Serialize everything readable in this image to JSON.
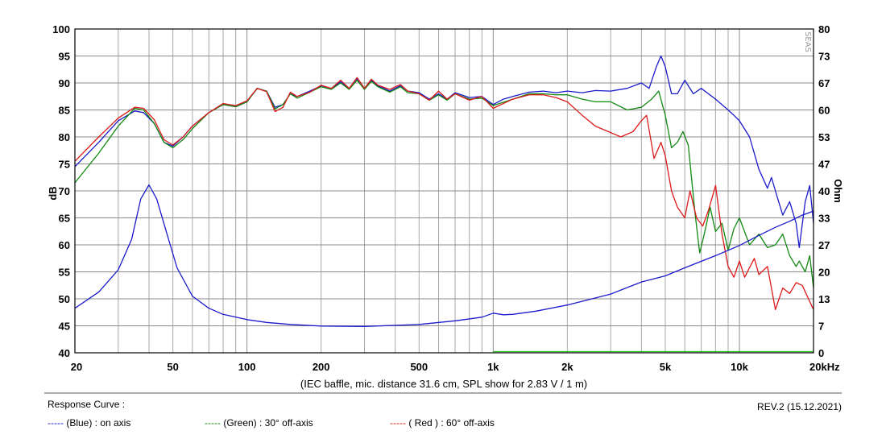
{
  "chart_data": {
    "type": "line",
    "xscale": "log",
    "xlim": [
      20,
      20000
    ],
    "ylim": [
      40,
      100
    ],
    "y2lim": [
      0,
      80
    ],
    "grid": true,
    "ylabel": "dB",
    "y2label": "Ohm",
    "xlabel_note": "(IEC baffle, mic. distance 31.6 cm, SPL show for 2.83 V / 1 m)",
    "x_ticks": [
      {
        "v": 20,
        "label": "20"
      },
      {
        "v": 50,
        "label": "50"
      },
      {
        "v": 100,
        "label": "100"
      },
      {
        "v": 200,
        "label": "200"
      },
      {
        "v": 500,
        "label": "500"
      },
      {
        "v": 1000,
        "label": "1k"
      },
      {
        "v": 2000,
        "label": "2k"
      },
      {
        "v": 5000,
        "label": "5k"
      },
      {
        "v": 10000,
        "label": "10k"
      },
      {
        "v": 20000,
        "label": "20kHz"
      }
    ],
    "y_ticks": [
      "40",
      "45",
      "50",
      "55",
      "60",
      "65",
      "70",
      "75",
      "80",
      "85",
      "90",
      "95",
      "100"
    ],
    "y2_ticks": [
      "0",
      "7",
      "13",
      "20",
      "27",
      "33",
      "40",
      "47",
      "53",
      "60",
      "67",
      "73",
      "80"
    ],
    "watermark": "SEAS",
    "series": [
      {
        "key": "on_axis",
        "axis": "left",
        "color": "#1a1acc",
        "points": [
          [
            20,
            74.5
          ],
          [
            25,
            79
          ],
          [
            30,
            83
          ],
          [
            35,
            84.8
          ],
          [
            38,
            84.5
          ],
          [
            42,
            82.5
          ],
          [
            46,
            79
          ],
          [
            50,
            78.3
          ],
          [
            55,
            80
          ],
          [
            60,
            82
          ],
          [
            70,
            84.5
          ],
          [
            80,
            86
          ],
          [
            90,
            85.6
          ],
          [
            100,
            86.5
          ],
          [
            110,
            89
          ],
          [
            120,
            88.5
          ],
          [
            130,
            85.5
          ],
          [
            140,
            86
          ],
          [
            150,
            88
          ],
          [
            160,
            87.5
          ],
          [
            180,
            88.5
          ],
          [
            200,
            89.5
          ],
          [
            220,
            89
          ],
          [
            240,
            90.2
          ],
          [
            260,
            89
          ],
          [
            280,
            90.8
          ],
          [
            300,
            89
          ],
          [
            320,
            90.5
          ],
          [
            340,
            89.5
          ],
          [
            380,
            88.5
          ],
          [
            420,
            89.5
          ],
          [
            450,
            88.5
          ],
          [
            500,
            88.2
          ],
          [
            550,
            87
          ],
          [
            600,
            88
          ],
          [
            650,
            87
          ],
          [
            700,
            88.2
          ],
          [
            800,
            87.3
          ],
          [
            900,
            87.5
          ],
          [
            1000,
            86
          ],
          [
            1100,
            87
          ],
          [
            1200,
            87.5
          ],
          [
            1400,
            88.3
          ],
          [
            1600,
            88.5
          ],
          [
            1800,
            88.2
          ],
          [
            2000,
            88.5
          ],
          [
            2300,
            88.2
          ],
          [
            2600,
            88.6
          ],
          [
            3000,
            88.5
          ],
          [
            3500,
            89
          ],
          [
            4000,
            90
          ],
          [
            4300,
            89
          ],
          [
            4600,
            93
          ],
          [
            4800,
            95
          ],
          [
            5000,
            93
          ],
          [
            5300,
            88
          ],
          [
            5600,
            88
          ],
          [
            6000,
            90.5
          ],
          [
            6500,
            88
          ],
          [
            7000,
            89
          ],
          [
            8000,
            87
          ],
          [
            9000,
            85
          ],
          [
            9500,
            84
          ],
          [
            10000,
            83
          ],
          [
            11000,
            80
          ],
          [
            12000,
            74
          ],
          [
            13000,
            70.5
          ],
          [
            13500,
            72.5
          ],
          [
            14000,
            70
          ],
          [
            15000,
            65.5
          ],
          [
            16000,
            68
          ],
          [
            17000,
            64
          ],
          [
            17500,
            59.5
          ],
          [
            18500,
            68
          ],
          [
            19300,
            71
          ],
          [
            20000,
            64
          ]
        ]
      },
      {
        "key": "off_30",
        "axis": "left",
        "color": "#138a13",
        "points": [
          [
            20,
            71.5
          ],
          [
            25,
            77
          ],
          [
            30,
            82
          ],
          [
            35,
            85.3
          ],
          [
            38,
            85
          ],
          [
            42,
            82.5
          ],
          [
            46,
            79
          ],
          [
            50,
            78
          ],
          [
            55,
            79.5
          ],
          [
            60,
            81.5
          ],
          [
            70,
            84.5
          ],
          [
            80,
            86
          ],
          [
            90,
            85.6
          ],
          [
            100,
            86.5
          ],
          [
            110,
            89
          ],
          [
            120,
            88.5
          ],
          [
            130,
            85.2
          ],
          [
            140,
            86
          ],
          [
            150,
            88
          ],
          [
            160,
            87.2
          ],
          [
            180,
            88.3
          ],
          [
            200,
            89.3
          ],
          [
            220,
            88.8
          ],
          [
            240,
            90
          ],
          [
            260,
            88.8
          ],
          [
            280,
            90.5
          ],
          [
            300,
            88.8
          ],
          [
            320,
            90.3
          ],
          [
            340,
            89.3
          ],
          [
            380,
            88.3
          ],
          [
            420,
            89.3
          ],
          [
            450,
            88.2
          ],
          [
            500,
            88
          ],
          [
            550,
            86.8
          ],
          [
            600,
            87.8
          ],
          [
            650,
            86.8
          ],
          [
            700,
            88
          ],
          [
            800,
            87
          ],
          [
            900,
            87.2
          ],
          [
            1000,
            85.8
          ],
          [
            1200,
            87
          ],
          [
            1400,
            88
          ],
          [
            1600,
            88
          ],
          [
            1800,
            87.8
          ],
          [
            2000,
            87.8
          ],
          [
            2300,
            87
          ],
          [
            2600,
            86.5
          ],
          [
            3000,
            86.5
          ],
          [
            3500,
            85
          ],
          [
            4000,
            85.5
          ],
          [
            4400,
            87
          ],
          [
            4700,
            88.5
          ],
          [
            5000,
            84
          ],
          [
            5300,
            78
          ],
          [
            5600,
            79
          ],
          [
            5900,
            81
          ],
          [
            6200,
            78.5
          ],
          [
            6600,
            66
          ],
          [
            6900,
            58.5
          ],
          [
            7200,
            62
          ],
          [
            7600,
            67
          ],
          [
            8000,
            62.5
          ],
          [
            8500,
            64
          ],
          [
            9000,
            59
          ],
          [
            9500,
            63
          ],
          [
            10000,
            65
          ],
          [
            11000,
            60
          ],
          [
            12000,
            62
          ],
          [
            13000,
            59.5
          ],
          [
            14000,
            60
          ],
          [
            15000,
            62
          ],
          [
            16000,
            58
          ],
          [
            17000,
            56
          ],
          [
            17500,
            57
          ],
          [
            18500,
            55
          ],
          [
            19300,
            58
          ],
          [
            20000,
            52
          ]
        ]
      },
      {
        "key": "off_60",
        "axis": "left",
        "color": "#dd1a1a",
        "points": [
          [
            20,
            75.5
          ],
          [
            25,
            80
          ],
          [
            30,
            83.5
          ],
          [
            35,
            85.5
          ],
          [
            38,
            85.3
          ],
          [
            42,
            83.2
          ],
          [
            46,
            79.5
          ],
          [
            50,
            78.5
          ],
          [
            55,
            80
          ],
          [
            60,
            82
          ],
          [
            70,
            84.5
          ],
          [
            80,
            86.2
          ],
          [
            90,
            85.8
          ],
          [
            100,
            86.7
          ],
          [
            110,
            89
          ],
          [
            120,
            88.4
          ],
          [
            130,
            84.7
          ],
          [
            140,
            85.5
          ],
          [
            150,
            88.3
          ],
          [
            160,
            87.5
          ],
          [
            180,
            88.3
          ],
          [
            200,
            89.6
          ],
          [
            220,
            89
          ],
          [
            240,
            90.5
          ],
          [
            260,
            89
          ],
          [
            280,
            91
          ],
          [
            300,
            89
          ],
          [
            320,
            90.7
          ],
          [
            340,
            89.6
          ],
          [
            380,
            88.8
          ],
          [
            420,
            89.7
          ],
          [
            450,
            88.5
          ],
          [
            500,
            88
          ],
          [
            550,
            86.8
          ],
          [
            600,
            88.5
          ],
          [
            650,
            87
          ],
          [
            700,
            88
          ],
          [
            800,
            86.8
          ],
          [
            900,
            87.5
          ],
          [
            1000,
            85.3
          ],
          [
            1200,
            87
          ],
          [
            1400,
            87.8
          ],
          [
            1600,
            87.8
          ],
          [
            1800,
            87.3
          ],
          [
            2000,
            86.5
          ],
          [
            2300,
            84
          ],
          [
            2600,
            82
          ],
          [
            3000,
            80.8
          ],
          [
            3300,
            80
          ],
          [
            3700,
            81
          ],
          [
            4000,
            83
          ],
          [
            4200,
            84
          ],
          [
            4500,
            76
          ],
          [
            4800,
            79
          ],
          [
            5000,
            76.5
          ],
          [
            5300,
            70
          ],
          [
            5600,
            67
          ],
          [
            6000,
            65
          ],
          [
            6300,
            70
          ],
          [
            6700,
            65
          ],
          [
            7100,
            63.5
          ],
          [
            7500,
            66.5
          ],
          [
            8000,
            71
          ],
          [
            8500,
            62
          ],
          [
            9000,
            56
          ],
          [
            9500,
            54
          ],
          [
            10000,
            57
          ],
          [
            10500,
            54
          ],
          [
            11500,
            57.5
          ],
          [
            12000,
            54.5
          ],
          [
            13000,
            56
          ],
          [
            14000,
            48
          ],
          [
            15000,
            52
          ],
          [
            16000,
            51
          ],
          [
            17000,
            53
          ],
          [
            18000,
            52.5
          ],
          [
            20000,
            48
          ]
        ]
      },
      {
        "key": "impedance",
        "axis": "right",
        "color": "#1a1acc",
        "points": [
          [
            20,
            11
          ],
          [
            25,
            15
          ],
          [
            30,
            20.5
          ],
          [
            34,
            28
          ],
          [
            37,
            38
          ],
          [
            40,
            41.5
          ],
          [
            43,
            38
          ],
          [
            47,
            30
          ],
          [
            52,
            21
          ],
          [
            60,
            14
          ],
          [
            70,
            11
          ],
          [
            80,
            9.5
          ],
          [
            100,
            8.2
          ],
          [
            120,
            7.5
          ],
          [
            150,
            7
          ],
          [
            200,
            6.6
          ],
          [
            300,
            6.5
          ],
          [
            500,
            7
          ],
          [
            700,
            7.9
          ],
          [
            900,
            8.8
          ],
          [
            1000,
            9.8
          ],
          [
            1100,
            9.4
          ],
          [
            1200,
            9.5
          ],
          [
            1500,
            10.3
          ],
          [
            2000,
            11.8
          ],
          [
            3000,
            14.5
          ],
          [
            4000,
            17.5
          ],
          [
            5000,
            19
          ],
          [
            6000,
            21
          ],
          [
            8000,
            24
          ],
          [
            10000,
            26.5
          ],
          [
            12000,
            29
          ],
          [
            14000,
            31
          ],
          [
            16000,
            32.5
          ],
          [
            18000,
            34
          ],
          [
            20000,
            35
          ]
        ]
      },
      {
        "key": "baseline",
        "axis": "right",
        "color": "#22c022",
        "points": [
          [
            1000,
            0.3
          ],
          [
            20000,
            0.3
          ]
        ]
      }
    ]
  },
  "footer": {
    "heading": "Response Curve :",
    "revision": "REV.2 (15.12.2021)",
    "legend": [
      {
        "dash": "-----",
        "text": " (Blue)  : on axis",
        "color": "#1a1acc"
      },
      {
        "dash": "-----",
        "text": " (Green) : 30° off-axis",
        "color": "#138a13"
      },
      {
        "dash": "-----",
        "text": " ( Red ) : 60° off-axis",
        "color": "#dd1a1a"
      }
    ]
  }
}
